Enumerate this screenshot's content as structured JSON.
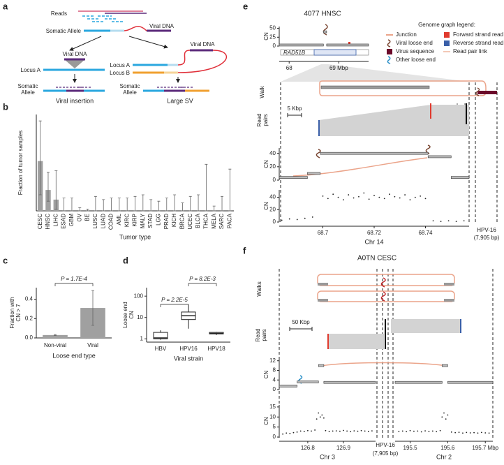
{
  "panels": [
    "a",
    "b",
    "c",
    "d",
    "e",
    "f"
  ],
  "diagram": {
    "reads": "Reads",
    "somatic_allele": "Somatic Allele",
    "viral_dna": "Viral DNA",
    "insertion": {
      "viral_dna": "Viral DNA",
      "locus_a": "Locus A",
      "somatic_allele": [
        "Somatic",
        "Allele"
      ],
      "caption": "Viral insertion"
    },
    "sv": {
      "viral_dna": "Viral DNA",
      "locus_a": "Locus A",
      "locus_b": "Locus B",
      "somatic_allele": [
        "Somatic",
        "Allele"
      ],
      "caption": "Large SV"
    }
  },
  "genome_panels": {
    "e": {
      "title": "4077 HNSC",
      "gene": "RAD51B",
      "walk": "Walk",
      "read_pairs": [
        "Read",
        "pairs"
      ],
      "scale": "5 Kbp",
      "virus": "HPV-16",
      "virus_length": "(7,905 bp)",
      "legend_title": "Genome graph legend:",
      "legend": [
        {
          "label": "Junction",
          "color": "#eba48a"
        },
        {
          "label": "Viral loose end",
          "color": "#7a4632"
        },
        {
          "label": "Virus sequence",
          "color": "#6b0a2a"
        },
        {
          "label": "Other loose end",
          "color": "#2a8fc7"
        },
        {
          "label": "Forward strand read",
          "color": "#e03a2e"
        },
        {
          "label": "Reverse strand read",
          "color": "#3a5fa8"
        },
        {
          "label": "Read pair link",
          "color": "#f3c8b6"
        }
      ]
    },
    "f": {
      "title": "A0TN CESC",
      "walks": "Walks",
      "read_pairs": [
        "Read",
        "pairs"
      ],
      "scale": "50 Kbp",
      "virus": "HPV-16",
      "virus_length": "(7,905 bp)"
    }
  },
  "chart_data": [
    {
      "type": "bar",
      "ylabel": "Fraction of tumor samples",
      "xlabel": "Tumor type",
      "categories": [
        "CESC",
        "HNSC",
        "LIHC",
        "ESAD",
        "GBM",
        "OV",
        "BE",
        "LUSC",
        "LUAD",
        "COAD",
        "AML",
        "KIRC",
        "KIRP",
        "MALY",
        "STAD",
        "LGG",
        "PRAD",
        "KICH",
        "BRCA",
        "UCEC",
        "BLCA",
        "THCA",
        "MELA",
        "SARC",
        "PACA"
      ],
      "values": [
        0.31,
        0.13,
        0.07,
        0,
        0,
        0,
        0,
        0,
        0,
        0,
        0,
        0,
        0,
        0,
        0,
        0,
        0,
        0,
        0,
        0,
        0,
        0,
        0,
        0,
        0
      ],
      "ci_low": [
        0.1,
        0.06,
        0.01,
        0,
        0,
        0,
        0,
        0,
        0,
        0,
        0,
        0,
        0,
        0,
        0,
        0,
        0,
        0,
        0,
        0,
        0,
        0,
        0,
        0,
        0
      ],
      "ci_high": [
        0.56,
        0.24,
        0.25,
        0.08,
        0.08,
        0.02,
        0.01,
        0.09,
        0.07,
        0.08,
        0.08,
        0.08,
        0.09,
        0.1,
        0.07,
        0.06,
        0.08,
        0.1,
        0.05,
        0.09,
        0.1,
        0.29,
        0.03,
        0.09,
        0.26
      ],
      "color": "#a0a0a0",
      "ylim": [
        0,
        0.6
      ]
    },
    {
      "type": "bar",
      "ylabel": [
        "Fraction with",
        "CN > 7"
      ],
      "xlabel": "Loose end type",
      "categories": [
        "Non-viral",
        "Viral"
      ],
      "values": [
        0.03,
        0.31
      ],
      "ci_low": [
        0.025,
        0.13
      ],
      "ci_high": [
        0.035,
        0.49
      ],
      "color": "#a0a0a0",
      "ylim": [
        0,
        0.52
      ],
      "yticks": [
        {
          "value": 0,
          "label": "0.0"
        },
        0.2,
        0.4
      ],
      "annotations": [
        "P = 1.7E-4"
      ]
    },
    {
      "type": "box",
      "log": true,
      "ylabel": [
        "Loose end",
        "CN"
      ],
      "xlabel": "Viral strain",
      "categories": [
        "HBV",
        "HPV16",
        "HPV18"
      ],
      "min": [
        0.9,
        3,
        1.5
      ],
      "q1": [
        1,
        8,
        1.7
      ],
      "median": [
        1.1,
        12,
        1.8
      ],
      "q3": [
        2,
        18,
        2
      ],
      "max": [
        2.5,
        40,
        2.1
      ],
      "ylim": [
        0.7,
        250
      ],
      "yticks": [
        1,
        10,
        100
      ],
      "annotations": [
        "P = 2.2E-5",
        "P = 8.2E-3"
      ]
    },
    {
      "type": "segments",
      "ylabel": "CN",
      "x_start": [
        67.8,
        68.69,
        68.755
      ],
      "x_end": [
        68.69,
        68.755,
        69.6
      ],
      "values": [
        3,
        40,
        3
      ],
      "xlim": [
        67.8,
        69.6
      ],
      "ylim": [
        0,
        55
      ],
      "yticks": [
        0,
        25,
        50
      ],
      "xticks": [
        68,
        {
          "value": 69,
          "label": "69 Mbp"
        }
      ]
    },
    {
      "type": "segments",
      "ylabel": "CN",
      "x_start": [
        68.683,
        68.694,
        68.699,
        68.741,
        68.75
      ],
      "x_end": [
        68.694,
        68.699,
        68.741,
        68.75,
        68.757
      ],
      "values": [
        4,
        10,
        40,
        35,
        4
      ],
      "xlim": [
        68.683,
        68.757
      ],
      "ylim": [
        0,
        48
      ],
      "yticks": [
        0,
        20,
        40
      ]
    },
    {
      "type": "scatter",
      "ylabel": "CN",
      "xlabel": "Chr 14",
      "x": [
        68.684,
        68.687,
        68.69,
        68.693,
        68.696,
        68.7,
        68.702,
        68.704,
        68.706,
        68.708,
        68.71,
        68.712,
        68.714,
        68.716,
        68.718,
        68.72,
        68.722,
        68.724,
        68.726,
        68.728,
        68.73,
        68.732,
        68.734,
        68.736,
        68.738,
        68.74,
        68.743,
        68.746,
        68.749,
        68.752,
        68.755
      ],
      "y": [
        3,
        5,
        4,
        6,
        8,
        42,
        38,
        45,
        40,
        36,
        44,
        39,
        41,
        47,
        37,
        43,
        40,
        38,
        45,
        41,
        39,
        44,
        36,
        40,
        42,
        38,
        2,
        1,
        2,
        1,
        2
      ],
      "xlim": [
        68.683,
        68.757
      ],
      "ylim": [
        0,
        52
      ],
      "yticks": [
        0,
        20,
        40
      ],
      "xticks": [
        68.7,
        68.72,
        68.74
      ]
    },
    {
      "type": "segments",
      "ylabel": "CN",
      "x_start": [
        126.72,
        126.77,
        126.83,
        126.845
      ],
      "x_end": [
        126.77,
        126.83,
        126.845,
        126.99
      ],
      "values": [
        1.5,
        3.2,
        10,
        3
      ],
      "xlim": [
        126.72,
        126.99
      ],
      "ylim": [
        0,
        12.5
      ],
      "yticks": [
        0,
        4,
        8,
        12
      ]
    },
    {
      "type": "segments",
      "x_start": [
        195.46,
        195.585,
        195.6
      ],
      "x_end": [
        195.585,
        195.6,
        195.72
      ],
      "values": [
        3,
        10,
        3
      ],
      "xlim": [
        195.46,
        195.72
      ],
      "ylim": [
        0,
        12.5
      ]
    },
    {
      "type": "scatter",
      "ylabel": "CN",
      "xlabel": "Chr 3",
      "x": [
        126.73,
        126.74,
        126.75,
        126.76,
        126.77,
        126.78,
        126.79,
        126.8,
        126.81,
        126.82,
        126.825,
        126.83,
        126.835,
        126.84,
        126.845,
        126.85,
        126.86,
        126.87,
        126.88,
        126.89,
        126.9,
        126.91,
        126.92,
        126.93,
        126.94,
        126.95,
        126.96,
        126.97,
        126.98
      ],
      "y": [
        1.5,
        2,
        1.8,
        2.2,
        2.5,
        3,
        2.8,
        3.2,
        3,
        3.5,
        9,
        12,
        10,
        11,
        9.5,
        3.2,
        2.8,
        3,
        3.1,
        2.9,
        3.3,
        3,
        2.7,
        3.1,
        2.9,
        3.2,
        3,
        2.8,
        3.1
      ],
      "xlim": [
        126.72,
        126.99
      ],
      "ylim": [
        0,
        16
      ],
      "yticks": [
        0,
        5,
        10,
        15
      ],
      "xticks": [
        126.8,
        126.9
      ]
    },
    {
      "type": "scatter",
      "xlabel": "Chr 2",
      "x": [
        195.47,
        195.48,
        195.49,
        195.5,
        195.51,
        195.52,
        195.53,
        195.54,
        195.55,
        195.56,
        195.57,
        195.58,
        195.585,
        195.59,
        195.595,
        195.6,
        195.61,
        195.62,
        195.63,
        195.64,
        195.65,
        195.66,
        195.67,
        195.68,
        195.69,
        195.7,
        195.71
      ],
      "y": [
        2.8,
        3,
        2.7,
        3.2,
        2.9,
        3,
        2.6,
        3.1,
        2.8,
        3,
        2.7,
        3.2,
        10,
        12,
        9,
        11,
        2.5,
        2.2,
        2.4,
        2,
        2.3,
        2.1,
        2.2,
        2,
        2.3,
        2.1,
        2
      ],
      "xlim": [
        195.46,
        195.72
      ],
      "ylim": [
        0,
        16
      ],
      "xticks": [
        195.5,
        195.6,
        {
          "value": 195.7,
          "label": "195.7 Mbp"
        }
      ]
    }
  ]
}
